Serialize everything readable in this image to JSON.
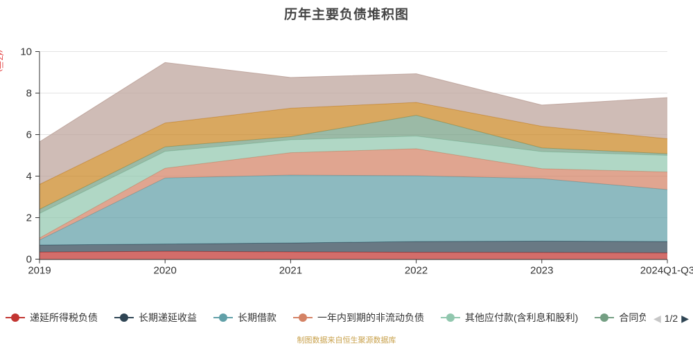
{
  "title": "历年主要负债堆积图",
  "y_axis_unit": "(亿元)",
  "source_note": "制图数据来自恒生聚源数据库",
  "pagination": {
    "label": "1/2",
    "prev_icon": "◀",
    "next_icon": "▶"
  },
  "chart_data": {
    "type": "area",
    "stacked": true,
    "grid": true,
    "area_opacity": 0.72,
    "x": [
      "2019",
      "2020",
      "2021",
      "2022",
      "2023",
      "2024Q1-Q3"
    ],
    "y_ticks": [
      0,
      2,
      4,
      6,
      8,
      10
    ],
    "ylim": [
      0,
      10
    ],
    "legend_position": "bottom",
    "series": [
      {
        "name": "递延所得税负债",
        "color": "#c23531",
        "on_visible_legend_page": true,
        "values": [
          0.34,
          0.38,
          0.35,
          0.33,
          0.32,
          0.3
        ]
      },
      {
        "name": "长期递延收益",
        "color": "#2f4554",
        "on_visible_legend_page": true,
        "values": [
          0.34,
          0.35,
          0.43,
          0.52,
          0.55,
          0.55
        ]
      },
      {
        "name": "长期借款",
        "color": "#61a0a8",
        "on_visible_legend_page": true,
        "values": [
          0.24,
          3.18,
          3.27,
          3.17,
          3.01,
          2.5
        ]
      },
      {
        "name": "一年内到期的非流动负债",
        "color": "#d48265",
        "on_visible_legend_page": true,
        "values": [
          0.1,
          0.47,
          1.08,
          1.3,
          0.48,
          0.85
        ]
      },
      {
        "name": "其他应付款(含利息和股利)",
        "color": "#91c7ae",
        "on_visible_legend_page": true,
        "values": [
          1.18,
          0.81,
          0.62,
          0.61,
          0.82,
          0.8
        ]
      },
      {
        "name": "合同负债",
        "color": "#749f83",
        "on_visible_legend_page": true,
        "values": [
          0.2,
          0.22,
          0.15,
          1.0,
          0.18,
          0.08
        ]
      },
      {
        "name": "",
        "color": "#ca8622",
        "on_visible_legend_page": false,
        "values": [
          1.2,
          1.15,
          1.37,
          0.62,
          1.04,
          0.72
        ]
      },
      {
        "name": "",
        "color": "#bda29a",
        "on_visible_legend_page": false,
        "values": [
          2.05,
          2.91,
          1.48,
          1.38,
          1.02,
          1.98
        ]
      }
    ]
  }
}
